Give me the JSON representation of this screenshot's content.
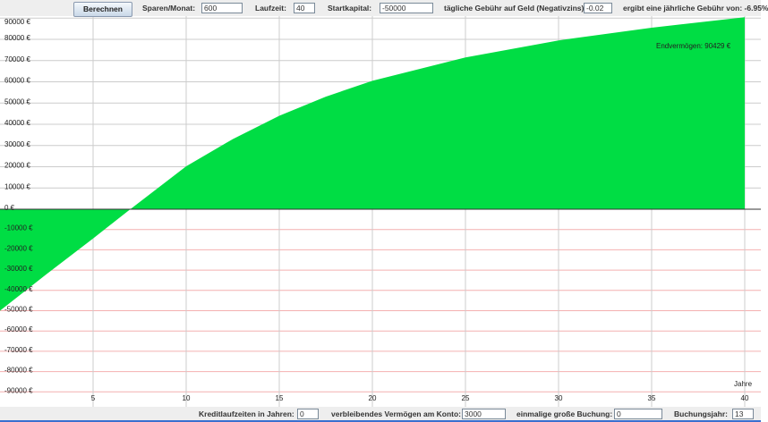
{
  "toolbar": {
    "calculate_label": "Berechnen",
    "savings_label": "Sparen/Monat:",
    "savings_value": "600",
    "duration_label": "Laufzeit:",
    "duration_value": "40",
    "start_capital_label": "Startkapital:",
    "start_capital_value": "-50000",
    "daily_fee_label": "tägliche Gebühr auf Geld (Negativzins):",
    "daily_fee_value": "-0.02",
    "annual_fee_text": "ergibt eine jährliche Gebühr von: -6.95%"
  },
  "bottombar": {
    "credit_label": "Kreditlaufzeiten in Jahren:",
    "credit_value": "0",
    "remaining_label": "verbleibendes Vermögen am Konto:",
    "remaining_value": "3000",
    "onetime_label": "einmalige große Buchung:",
    "onetime_value": "0",
    "booking_year_label": "Buchungsjahr:",
    "booking_year_value": "13"
  },
  "chart_data": {
    "type": "area",
    "xlabel": "Jahre",
    "annotation": "Endvermögen: 90429 €",
    "x": [
      0,
      2.5,
      5,
      7,
      10,
      12.5,
      15,
      17.5,
      20,
      25,
      30,
      35,
      40
    ],
    "values": [
      -50000,
      -32000,
      -14400,
      0,
      20200,
      33000,
      44000,
      53000,
      60500,
      71500,
      79500,
      85500,
      90429
    ],
    "xlim": [
      0,
      40
    ],
    "ylim": [
      -90000,
      90000
    ],
    "x_ticks": [
      "5",
      "10",
      "15",
      "20",
      "25",
      "30",
      "35",
      "40"
    ],
    "y_ticks": [
      "90000 €",
      "80000 €",
      "70000 €",
      "60000 €",
      "50000 €",
      "40000 €",
      "30000 €",
      "20000 €",
      "10000 €",
      "0 €",
      "-10000 €",
      "-20000 €",
      "-30000 €",
      "-40000 €",
      "-50000 €",
      "-60000 €",
      "-70000 €",
      "-80000 €",
      "-90000 €"
    ],
    "grid": true,
    "colors": {
      "fill": "#00dd44",
      "grid_positive": "#cccccc",
      "grid_negative": "#f4b0b0",
      "zero_line": "#333333"
    }
  }
}
